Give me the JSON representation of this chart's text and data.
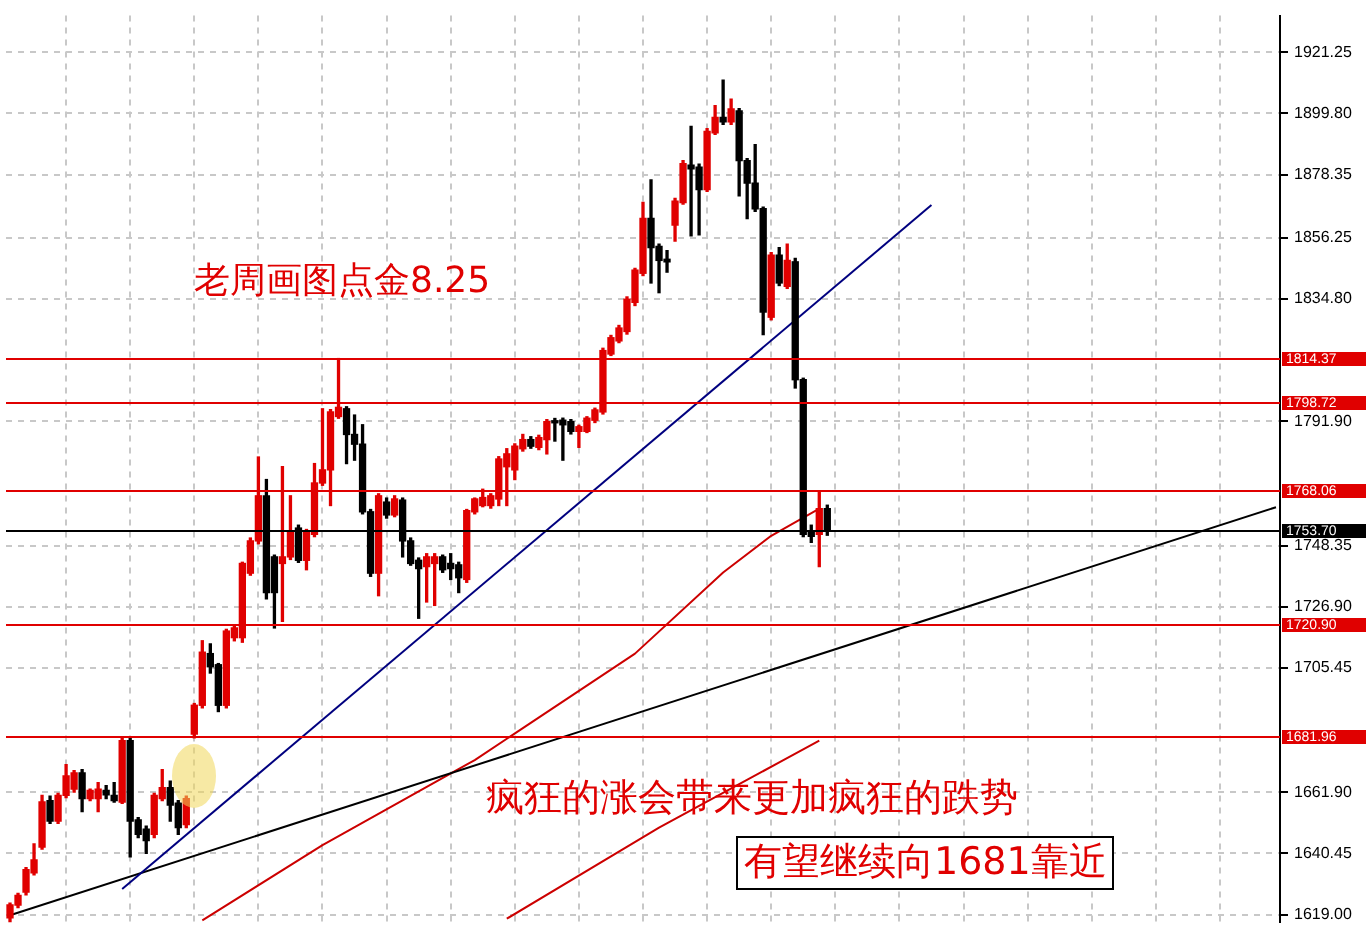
{
  "chart_data": {
    "type": "candlestick",
    "title": "老周画图点金8.25",
    "annotations": [
      "疯狂的涨会带来更加疯狂的跌势",
      "有望继续向1681靠近"
    ],
    "categories": [
      null,
      null,
      null,
      null,
      null,
      null,
      null,
      null,
      null,
      null,
      null,
      null,
      null,
      null,
      null,
      null,
      null,
      null,
      null,
      null,
      null,
      null,
      null,
      null,
      null,
      null,
      null,
      null,
      null,
      null,
      null,
      null,
      null,
      null,
      null,
      null,
      null,
      null,
      null,
      null,
      null,
      null,
      null,
      null,
      null,
      null,
      null,
      null,
      null,
      null,
      null,
      null,
      null,
      null,
      null,
      null,
      null,
      null,
      null,
      null,
      null,
      null,
      null,
      null,
      null,
      null,
      null,
      null,
      null,
      null,
      null,
      null,
      null,
      null,
      null,
      null,
      null,
      null,
      null,
      null,
      null,
      null,
      null,
      null,
      null,
      null,
      null,
      null,
      null,
      null,
      null,
      null,
      null,
      null,
      null,
      null,
      null,
      null,
      null,
      null,
      null,
      null,
      null,
      null,
      null,
      null,
      null,
      null,
      null,
      null,
      null,
      null,
      null,
      null,
      null,
      null,
      null,
      null,
      null,
      null,
      null,
      null,
      null,
      null,
      null,
      null,
      null,
      null,
      null,
      null,
      null,
      null,
      null,
      null,
      null,
      null,
      null,
      null,
      null,
      null,
      null,
      null,
      null,
      null,
      null,
      null,
      null,
      null,
      null,
      null,
      null,
      null,
      null,
      null,
      null,
      null,
      null,
      null,
      null
    ],
    "ohlc": [
      [
        1617.9,
        1623,
        1616.5,
        1622.4
      ],
      [
        1622.4,
        1626.5,
        1621.5,
        1625.8
      ],
      [
        1626.9,
        1635.5,
        1626,
        1634.8
      ],
      [
        1633.7,
        1643.8,
        1633,
        1638.2
      ],
      [
        1642.7,
        1660.8,
        1642,
        1658.5
      ],
      [
        1659,
        1660.5,
        1651,
        1651.8
      ],
      [
        1651.8,
        1661.5,
        1651,
        1660.8
      ],
      [
        1660.8,
        1671.6,
        1660,
        1667.6
      ],
      [
        1663,
        1669.5,
        1662,
        1668.7
      ],
      [
        1668.7,
        1669.8,
        1655.1,
        1659.7
      ],
      [
        1659.7,
        1663,
        1659,
        1662.6
      ],
      [
        1659.7,
        1665.3,
        1655.1,
        1663
      ],
      [
        1662.6,
        1664.2,
        1659.7,
        1661
      ],
      [
        1660.8,
        1665.3,
        1658.5,
        1659
      ],
      [
        1658.5,
        1680.7,
        1658,
        1680
      ],
      [
        1680,
        1680.7,
        1639.3,
        1651.8
      ],
      [
        1652.2,
        1653,
        1646,
        1647.2
      ],
      [
        1649,
        1650,
        1640.5,
        1645
      ],
      [
        1647.2,
        1661.5,
        1646,
        1660.8
      ],
      [
        1659.7,
        1669.8,
        1659,
        1663.5
      ],
      [
        1663.5,
        1665.8,
        1651.8,
        1657.4
      ],
      [
        1658.1,
        1659,
        1647.2,
        1649.5
      ],
      [
        1650.6,
        1660.5,
        1649.5,
        1659.7
      ],
      [
        1682.3,
        1693,
        1681,
        1692.4
      ],
      [
        1692.4,
        1715,
        1691.5,
        1711
      ],
      [
        1710.5,
        1713.9,
        1703.7,
        1705.9
      ],
      [
        1706.6,
        1707,
        1690.2,
        1692.4
      ],
      [
        1692.4,
        1719,
        1691.5,
        1718.4
      ],
      [
        1716.1,
        1720,
        1715,
        1719.5
      ],
      [
        1716.1,
        1742.5,
        1714.5,
        1742.1
      ],
      [
        1738.7,
        1751,
        1738,
        1750
      ],
      [
        1750,
        1779.4,
        1749,
        1765.8
      ],
      [
        1765.8,
        1771.5,
        1729.7,
        1731.9
      ],
      [
        1744.4,
        1745,
        1719.5,
        1731.9
      ],
      [
        1742.1,
        1776,
        1721.8,
        1744.4
      ],
      [
        1744.4,
        1765.8,
        1743.5,
        1753.4
      ],
      [
        1754.5,
        1755.5,
        1742.5,
        1743.2
      ],
      [
        1743.2,
        1754,
        1739.9,
        1753.4
      ],
      [
        1752.3,
        1777.1,
        1751.5,
        1770.3
      ],
      [
        1770.3,
        1796.3,
        1769.5,
        1774.9
      ],
      [
        1774.9,
        1796,
        1762.4,
        1795.2
      ],
      [
        1793.6,
        1813.9,
        1793,
        1796.8
      ],
      [
        1796.3,
        1797,
        1777.1,
        1787.3
      ],
      [
        1787.3,
        1794.1,
        1778.3,
        1783.9
      ],
      [
        1783.9,
        1790.7,
        1759.5,
        1760.2
      ],
      [
        1760.2,
        1761,
        1737.6,
        1738.7
      ],
      [
        1738.7,
        1766.5,
        1730.8,
        1765.8
      ],
      [
        1763.6,
        1765,
        1758,
        1759.1
      ],
      [
        1759.1,
        1765.8,
        1758.5,
        1764.7
      ],
      [
        1764.3,
        1765,
        1744.4,
        1750
      ],
      [
        1750,
        1751,
        1741.5,
        1742.1
      ],
      [
        1743.2,
        1744,
        1722.9,
        1740.3
      ],
      [
        1741,
        1745.5,
        1728.6,
        1744.4
      ],
      [
        1742.1,
        1745.5,
        1727.4,
        1744.4
      ],
      [
        1744.4,
        1745,
        1739,
        1739.9
      ],
      [
        1742.1,
        1745.5,
        1736.5,
        1740.3
      ],
      [
        1741.6,
        1742.5,
        1731.9,
        1737.1
      ],
      [
        1736.5,
        1761,
        1735.5,
        1760.6
      ],
      [
        1760.2,
        1765,
        1759.5,
        1764.7
      ],
      [
        1762.4,
        1768.1,
        1762,
        1765.2
      ],
      [
        1762.4,
        1766.5,
        1761.5,
        1765.8
      ],
      [
        1764.7,
        1779.5,
        1762.4,
        1778.7
      ],
      [
        1776,
        1782.3,
        1762.4,
        1780.5
      ],
      [
        1774.9,
        1784,
        1771.5,
        1783.2
      ],
      [
        1782.3,
        1787.3,
        1781.5,
        1785.5
      ],
      [
        1785.5,
        1786.5,
        1782.5,
        1783.2
      ],
      [
        1782.8,
        1787,
        1782,
        1786.2
      ],
      [
        1785.5,
        1792.5,
        1780.5,
        1791.8
      ],
      [
        1791.8,
        1792.9,
        1785,
        1791.4
      ],
      [
        1792.3,
        1793,
        1778.3,
        1790.7
      ],
      [
        1791.8,
        1792.5,
        1787.5,
        1788.4
      ],
      [
        1788.4,
        1790.5,
        1782.8,
        1790
      ],
      [
        1788.4,
        1793.5,
        1788,
        1793
      ],
      [
        1792.3,
        1796.5,
        1791.5,
        1795.9
      ],
      [
        1795.2,
        1817.5,
        1794.5,
        1816.7
      ],
      [
        1815.5,
        1822,
        1815,
        1821.2
      ],
      [
        1820.1,
        1825.5,
        1819.5,
        1824.6
      ],
      [
        1823.4,
        1835.5,
        1822.5,
        1834.7
      ],
      [
        1833.6,
        1845.5,
        1832.5,
        1844.9
      ],
      [
        1843.8,
        1868.6,
        1843,
        1863
      ],
      [
        1863,
        1876.5,
        1840.4,
        1852.8
      ],
      [
        1853.2,
        1854,
        1837,
        1848.3
      ],
      [
        1848.7,
        1851.7,
        1844.2,
        1847.8
      ],
      [
        1860.7,
        1870,
        1855.1,
        1869.1
      ],
      [
        1868.6,
        1883.3,
        1868,
        1882.2
      ],
      [
        1881.7,
        1895.3,
        1856.9,
        1880.4
      ],
      [
        1881,
        1882,
        1857.3,
        1873.1
      ],
      [
        1873.1,
        1894.5,
        1872.5,
        1893.5
      ],
      [
        1893,
        1902.5,
        1892.5,
        1898.4
      ],
      [
        1898.4,
        1911.5,
        1896,
        1896.9
      ],
      [
        1896.9,
        1904.8,
        1896,
        1901.4
      ],
      [
        1900.7,
        1901.5,
        1870.9,
        1883.3
      ],
      [
        1883.3,
        1884,
        1863,
        1875.4
      ],
      [
        1875.4,
        1888.9,
        1865.5,
        1866.4
      ],
      [
        1866.4,
        1867,
        1822.3,
        1830.2
      ],
      [
        1828.4,
        1851,
        1827.5,
        1850.1
      ],
      [
        1850.1,
        1852.8,
        1839.5,
        1840.4
      ],
      [
        1839.2,
        1854,
        1838.5,
        1848.3
      ],
      [
        1847.8,
        1849,
        1803.6,
        1806.5
      ],
      [
        1806.5,
        1807,
        1751.5,
        1752.3
      ],
      [
        1752.9,
        1755.5,
        1749.5,
        1751.6
      ],
      [
        1752.3,
        1766.9,
        1741,
        1761.3
      ],
      [
        1761.3,
        1762.5,
        1752,
        1753.7
      ],
      null,
      null,
      null,
      null,
      null,
      null,
      null,
      null,
      null,
      null,
      null,
      null,
      null,
      null,
      null,
      null,
      null,
      null,
      null,
      null,
      null,
      null,
      null,
      null,
      null,
      null,
      null,
      null,
      null,
      null,
      null,
      null,
      null,
      null,
      null,
      null,
      null,
      null,
      null,
      null,
      null,
      null,
      null,
      null,
      null,
      null,
      null,
      null,
      null,
      null,
      null,
      null,
      null,
      null,
      null,
      null
    ],
    "series": [
      {
        "type": "line",
        "color": "#00007f",
        "values": [
          null,
          null,
          null,
          null,
          null,
          null,
          null,
          null,
          null,
          null,
          null,
          null,
          null,
          null,
          1628,
          null,
          null,
          null,
          null,
          null,
          null,
          null,
          null,
          null,
          null,
          null,
          null,
          null,
          null,
          null,
          null,
          null,
          null,
          null,
          null,
          null,
          null,
          null,
          null,
          null,
          null,
          null,
          null,
          null,
          null,
          null,
          null,
          null,
          null,
          null,
          null,
          null,
          null,
          null,
          null,
          null,
          null,
          null,
          null,
          null,
          null,
          null,
          null,
          null,
          null,
          null,
          null,
          null,
          null,
          null,
          null,
          null,
          null,
          null,
          null,
          null,
          null,
          null,
          null,
          null,
          null,
          null,
          null,
          null,
          null,
          null,
          null,
          null,
          null,
          null,
          null,
          null,
          null,
          null,
          null,
          null,
          null,
          null,
          null,
          null,
          null,
          null,
          null,
          null,
          null,
          null,
          null,
          null,
          null,
          null,
          null,
          null,
          null,
          null,
          null,
          1867.7,
          null,
          null,
          null,
          null,
          null,
          null,
          null,
          null,
          null,
          null,
          null,
          null,
          null,
          null,
          null,
          null,
          null,
          null,
          null,
          null,
          null,
          null,
          null,
          null,
          null,
          null,
          null,
          null,
          null,
          null,
          null,
          null,
          null,
          null,
          null,
          null,
          null,
          null,
          null,
          null,
          null,
          null,
          null
        ]
      },
      {
        "type": "line",
        "color": "#000000",
        "values": [
          1618.8,
          null,
          null,
          null,
          null,
          null,
          null,
          null,
          null,
          null,
          null,
          null,
          null,
          null,
          null,
          null,
          null,
          null,
          null,
          null,
          null,
          null,
          null,
          null,
          null,
          null,
          null,
          null,
          null,
          null,
          null,
          null,
          null,
          null,
          null,
          null,
          null,
          null,
          null,
          null,
          null,
          null,
          null,
          null,
          null,
          null,
          null,
          null,
          null,
          null,
          null,
          null,
          null,
          null,
          null,
          null,
          null,
          null,
          null,
          null,
          null,
          null,
          null,
          null,
          null,
          null,
          null,
          null,
          null,
          null,
          null,
          null,
          null,
          null,
          null,
          null,
          null,
          null,
          null,
          null,
          null,
          null,
          null,
          null,
          null,
          null,
          null,
          null,
          null,
          null,
          null,
          null,
          null,
          null,
          null,
          null,
          null,
          null,
          null,
          null,
          null,
          null,
          null,
          null,
          null,
          null,
          null,
          null,
          null,
          null,
          null,
          null,
          null,
          null,
          null,
          null,
          null,
          null,
          null,
          null,
          null,
          null,
          null,
          null,
          null,
          null,
          null,
          null,
          null,
          null,
          null,
          null,
          null,
          null,
          null,
          null,
          null,
          null,
          null,
          null,
          null,
          null,
          null,
          null,
          null,
          null,
          null,
          null,
          null,
          null,
          null,
          null,
          null,
          null,
          null,
          null,
          null,
          null,
          1761.8
        ]
      },
      {
        "type": "line",
        "color": "#cc0000",
        "values": [
          null,
          null,
          null,
          null,
          null,
          null,
          null,
          null,
          null,
          null,
          null,
          null,
          null,
          null,
          null,
          null,
          null,
          null,
          null,
          null,
          null,
          null,
          null,
          null,
          1617,
          null,
          null,
          null,
          null,
          null,
          null,
          null,
          null,
          null,
          null,
          null,
          null,
          null,
          null,
          1643.4,
          null,
          null,
          null,
          null,
          null,
          null,
          null,
          null,
          null,
          null,
          null,
          null,
          null,
          null,
          null,
          null,
          null,
          null,
          1673.2,
          null,
          null,
          null,
          null,
          null,
          null,
          null,
          null,
          null,
          null,
          null,
          null,
          null,
          null,
          null,
          null,
          null,
          null,
          null,
          1710.5,
          null,
          null,
          null,
          null,
          null,
          null,
          null,
          null,
          null,
          null,
          1738.9,
          null,
          null,
          null,
          null,
          null,
          1751.8,
          null,
          null,
          null,
          null,
          null,
          1761.3,
          null,
          null,
          null,
          null,
          null,
          null,
          null,
          null,
          null,
          null,
          null,
          null,
          null,
          null,
          null,
          null,
          null,
          null,
          null,
          null,
          null,
          null,
          null,
          null,
          null,
          null,
          null,
          null,
          null,
          null,
          null,
          null,
          null,
          null,
          null,
          null,
          null,
          null,
          null,
          null,
          null,
          null,
          null,
          null,
          null,
          null,
          null,
          null,
          null,
          null,
          null,
          null,
          null,
          null,
          null,
          null,
          null
        ]
      },
      {
        "type": "line",
        "color": "#cc0000",
        "values": [
          null,
          null,
          null,
          null,
          null,
          null,
          null,
          null,
          null,
          null,
          null,
          null,
          null,
          null,
          null,
          null,
          null,
          null,
          null,
          null,
          null,
          null,
          null,
          null,
          null,
          null,
          null,
          null,
          null,
          null,
          null,
          null,
          null,
          null,
          null,
          null,
          null,
          null,
          null,
          null,
          null,
          null,
          null,
          null,
          null,
          null,
          null,
          null,
          null,
          null,
          null,
          null,
          null,
          null,
          null,
          null,
          null,
          null,
          null,
          null,
          null,
          null,
          1617.6,
          null,
          null,
          null,
          null,
          null,
          null,
          null,
          null,
          null,
          null,
          null,
          null,
          null,
          null,
          null,
          null,
          null,
          null,
          1649.5,
          null,
          null,
          null,
          null,
          null,
          null,
          null,
          null,
          null,
          null,
          null,
          null,
          null,
          null,
          null,
          null,
          null,
          null,
          null,
          1680,
          null,
          null,
          null,
          null,
          null,
          null,
          null,
          null,
          null,
          null,
          null,
          null,
          null,
          null,
          null,
          null,
          null,
          null,
          null,
          null,
          null,
          null,
          null,
          null,
          null,
          null,
          null,
          null,
          null,
          null,
          null,
          null,
          null,
          null,
          null,
          null,
          null,
          null,
          null,
          null,
          null,
          null,
          null,
          null,
          null,
          null,
          null,
          null,
          null,
          null,
          null,
          null,
          null,
          null,
          null,
          null,
          null
        ]
      }
    ],
    "ref_lines": [
      {
        "axis": "y",
        "value": 1814.37,
        "label": "1814.37",
        "color": "#e00000"
      },
      {
        "axis": "y",
        "value": 1798.72,
        "label": "1798.72",
        "color": "#e00000"
      },
      {
        "axis": "y",
        "value": 1768.06,
        "label": "1768.06",
        "color": "#e00000"
      },
      {
        "axis": "y",
        "value": 1753.7,
        "label": "1753.70",
        "color": "#000000"
      },
      {
        "axis": "y",
        "value": 1720.9,
        "label": "1720.90",
        "color": "#e00000"
      },
      {
        "axis": "y",
        "value": 1681.96,
        "label": "1681.96",
        "color": "#e00000"
      }
    ],
    "ylim": [
      1616.3,
      1934.1
    ],
    "yticks": [
      {
        "value": 1619,
        "label": "1619.00"
      },
      1640.45,
      {
        "value": 1661.9,
        "label": "1661.90"
      },
      1705.45,
      {
        "value": 1726.9,
        "label": "1726.90"
      },
      1748.35,
      {
        "value": 1791.9,
        "label": "1791.90"
      },
      {
        "value": 1834.8,
        "label": "1834.80"
      },
      1856.25,
      1878.35,
      {
        "value": 1899.8,
        "label": "1899.80"
      },
      1921.25
    ],
    "grid": true,
    "legend": false
  }
}
